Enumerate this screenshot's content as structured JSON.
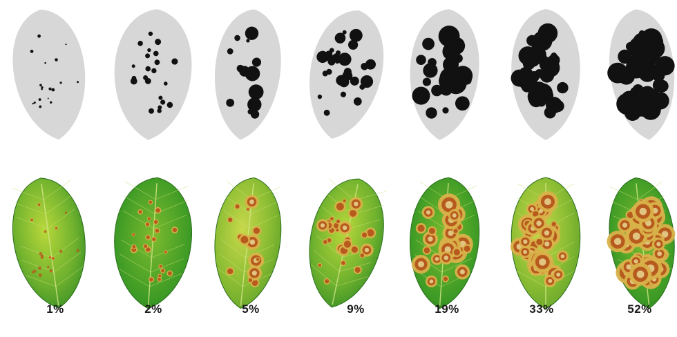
{
  "scale": {
    "labels": [
      "1%",
      "2%",
      "5%",
      "9%",
      "19%",
      "33%",
      "52%"
    ]
  },
  "palette": {
    "silhouette_fill": "#d7d7d7",
    "lesion_mask": "#111111",
    "leaf_light": "#b8d83a",
    "leaf_dark": "#2f8a24",
    "lesion_ring": "#d9b14a",
    "lesion_core": "#b75a1d"
  }
}
